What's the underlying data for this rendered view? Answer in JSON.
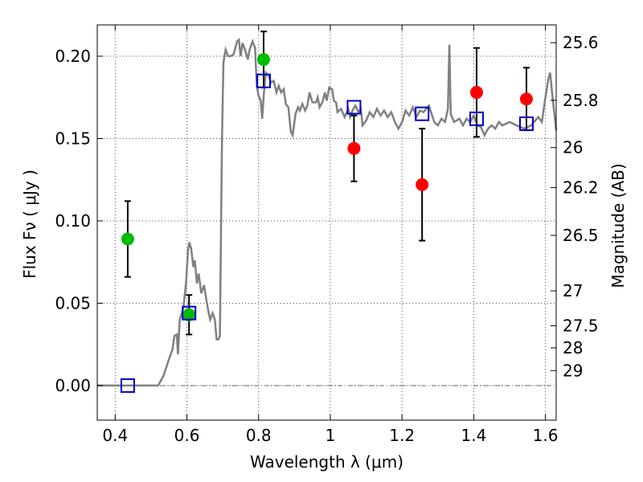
{
  "chart_data": {
    "type": "scatter",
    "xlabel": "Wavelength  λ (μm)",
    "ylabel": "Flux  Fν  ( μJy )",
    "ylabel_right": "Magnitude (AB)",
    "xlim": [
      0.35,
      1.63
    ],
    "ylim": [
      -0.021,
      0.219
    ],
    "x_ticks": [
      0.4,
      0.6,
      0.8,
      1.0,
      1.2,
      1.4,
      1.6
    ],
    "x_tick_labels": [
      "0.4",
      "0.6",
      "0.8",
      "1",
      "1.2",
      "1.4",
      "1.6"
    ],
    "y_ticks": [
      0.0,
      0.05,
      0.1,
      0.15,
      0.2
    ],
    "y_tick_labels": [
      "0.00",
      "0.05",
      "0.10",
      "0.15",
      "0.20"
    ],
    "right_ticks": [
      {
        "label": "25.6",
        "flux": 0.2082
      },
      {
        "label": "25.8",
        "flux": 0.1732
      },
      {
        "label": "26",
        "flux": 0.1445
      },
      {
        "label": "26.2",
        "flux": 0.1202
      },
      {
        "label": "26.5",
        "flux": 0.0912
      },
      {
        "label": "27",
        "flux": 0.0575
      },
      {
        "label": "27.5",
        "flux": 0.0363
      },
      {
        "label": "28",
        "flux": 0.0229
      },
      {
        "label": "29",
        "flux": 0.0091
      }
    ],
    "grid": true,
    "zero_line": 0.0,
    "colors": {
      "model": "#808080",
      "green_points": "#00bb00",
      "red_points": "#ff0000",
      "model_squares": "#0000cc",
      "errorbar": "#000000"
    },
    "series": [
      {
        "name": "Model spectrum",
        "kind": "line",
        "points": [
          [
            0.35,
            0.0
          ],
          [
            0.52,
            0.0
          ],
          [
            0.535,
            0.006
          ],
          [
            0.55,
            0.016
          ],
          [
            0.56,
            0.022
          ],
          [
            0.565,
            0.03
          ],
          [
            0.572,
            0.031
          ],
          [
            0.575,
            0.019
          ],
          [
            0.58,
            0.04
          ],
          [
            0.59,
            0.047
          ],
          [
            0.598,
            0.063
          ],
          [
            0.603,
            0.082
          ],
          [
            0.607,
            0.087
          ],
          [
            0.612,
            0.083
          ],
          [
            0.618,
            0.072
          ],
          [
            0.622,
            0.076
          ],
          [
            0.628,
            0.062
          ],
          [
            0.633,
            0.068
          ],
          [
            0.64,
            0.056
          ],
          [
            0.648,
            0.061
          ],
          [
            0.655,
            0.051
          ],
          [
            0.66,
            0.045
          ],
          [
            0.665,
            0.04
          ],
          [
            0.672,
            0.044
          ],
          [
            0.678,
            0.04
          ],
          [
            0.683,
            0.028
          ],
          [
            0.688,
            0.028
          ],
          [
            0.692,
            0.03
          ],
          [
            0.695,
            0.09
          ],
          [
            0.698,
            0.15
          ],
          [
            0.702,
            0.196
          ],
          [
            0.708,
            0.204
          ],
          [
            0.715,
            0.2
          ],
          [
            0.722,
            0.2
          ],
          [
            0.73,
            0.201
          ],
          [
            0.74,
            0.209
          ],
          [
            0.745,
            0.21
          ],
          [
            0.75,
            0.2
          ],
          [
            0.755,
            0.208
          ],
          [
            0.762,
            0.204
          ],
          [
            0.77,
            0.198
          ],
          [
            0.775,
            0.204
          ],
          [
            0.783,
            0.209
          ],
          [
            0.79,
            0.205
          ],
          [
            0.795,
            0.182
          ],
          [
            0.8,
            0.176
          ],
          [
            0.806,
            0.173
          ],
          [
            0.81,
            0.162
          ],
          [
            0.815,
            0.178
          ],
          [
            0.82,
            0.19
          ],
          [
            0.828,
            0.188
          ],
          [
            0.835,
            0.184
          ],
          [
            0.842,
            0.185
          ],
          [
            0.85,
            0.178
          ],
          [
            0.856,
            0.182
          ],
          [
            0.863,
            0.178
          ],
          [
            0.87,
            0.18
          ],
          [
            0.876,
            0.171
          ],
          [
            0.883,
            0.169
          ],
          [
            0.89,
            0.154
          ],
          [
            0.895,
            0.152
          ],
          [
            0.903,
            0.165
          ],
          [
            0.91,
            0.169
          ],
          [
            0.915,
            0.167
          ],
          [
            0.922,
            0.171
          ],
          [
            0.93,
            0.167
          ],
          [
            0.936,
            0.17
          ],
          [
            0.942,
            0.178
          ],
          [
            0.95,
            0.172
          ],
          [
            0.96,
            0.172
          ],
          [
            0.965,
            0.175
          ],
          [
            0.97,
            0.169
          ],
          [
            0.978,
            0.172
          ],
          [
            0.985,
            0.178
          ],
          [
            0.99,
            0.173
          ],
          [
            0.997,
            0.181
          ],
          [
            1.005,
            0.18
          ],
          [
            1.01,
            0.173
          ],
          [
            1.016,
            0.172
          ],
          [
            1.02,
            0.166
          ],
          [
            1.03,
            0.168
          ],
          [
            1.04,
            0.163
          ],
          [
            1.05,
            0.168
          ],
          [
            1.055,
            0.163
          ],
          [
            1.062,
            0.167
          ],
          [
            1.07,
            0.17
          ],
          [
            1.078,
            0.166
          ],
          [
            1.085,
            0.168
          ],
          [
            1.09,
            0.158
          ],
          [
            1.1,
            0.161
          ],
          [
            1.11,
            0.166
          ],
          [
            1.12,
            0.163
          ],
          [
            1.13,
            0.168
          ],
          [
            1.14,
            0.164
          ],
          [
            1.15,
            0.167
          ],
          [
            1.16,
            0.163
          ],
          [
            1.17,
            0.166
          ],
          [
            1.18,
            0.16
          ],
          [
            1.19,
            0.156
          ],
          [
            1.2,
            0.16
          ],
          [
            1.21,
            0.167
          ],
          [
            1.22,
            0.164
          ],
          [
            1.23,
            0.169
          ],
          [
            1.24,
            0.163
          ],
          [
            1.25,
            0.167
          ],
          [
            1.26,
            0.166
          ],
          [
            1.275,
            0.17
          ],
          [
            1.29,
            0.16
          ],
          [
            1.3,
            0.158
          ],
          [
            1.31,
            0.162
          ],
          [
            1.32,
            0.16
          ],
          [
            1.328,
            0.168
          ],
          [
            1.332,
            0.207
          ],
          [
            1.336,
            0.165
          ],
          [
            1.345,
            0.16
          ],
          [
            1.36,
            0.162
          ],
          [
            1.37,
            0.158
          ],
          [
            1.38,
            0.162
          ],
          [
            1.39,
            0.16
          ],
          [
            1.4,
            0.164
          ],
          [
            1.41,
            0.158
          ],
          [
            1.42,
            0.157
          ],
          [
            1.43,
            0.152
          ],
          [
            1.44,
            0.156
          ],
          [
            1.45,
            0.158
          ],
          [
            1.46,
            0.156
          ],
          [
            1.47,
            0.16
          ],
          [
            1.48,
            0.158
          ],
          [
            1.5,
            0.16
          ],
          [
            1.52,
            0.158
          ],
          [
            1.54,
            0.156
          ],
          [
            1.56,
            0.158
          ],
          [
            1.58,
            0.163
          ],
          [
            1.59,
            0.16
          ],
          [
            1.6,
            0.175
          ],
          [
            1.608,
            0.186
          ],
          [
            1.613,
            0.19
          ],
          [
            1.62,
            0.175
          ],
          [
            1.63,
            0.155
          ]
        ]
      },
      {
        "name": "Observed (green)",
        "kind": "points",
        "points": [
          {
            "x": 0.435,
            "y": 0.089,
            "err": 0.023
          },
          {
            "x": 0.606,
            "y": 0.043,
            "err": 0.012
          },
          {
            "x": 0.814,
            "y": 0.198,
            "err": 0.017
          }
        ]
      },
      {
        "name": "Observed (red)",
        "kind": "points",
        "points": [
          {
            "x": 1.066,
            "y": 0.144,
            "err": 0.02
          },
          {
            "x": 1.256,
            "y": 0.122,
            "err": 0.034
          },
          {
            "x": 1.408,
            "y": 0.178,
            "err": 0.027
          },
          {
            "x": 1.547,
            "y": 0.174,
            "err": 0.019
          }
        ]
      },
      {
        "name": "Model photometry",
        "kind": "squares",
        "points": [
          {
            "x": 0.435,
            "y": 0.0
          },
          {
            "x": 0.606,
            "y": 0.044
          },
          {
            "x": 0.814,
            "y": 0.185
          },
          {
            "x": 1.066,
            "y": 0.169
          },
          {
            "x": 1.256,
            "y": 0.165
          },
          {
            "x": 1.408,
            "y": 0.162
          },
          {
            "x": 1.547,
            "y": 0.159
          }
        ]
      }
    ]
  }
}
